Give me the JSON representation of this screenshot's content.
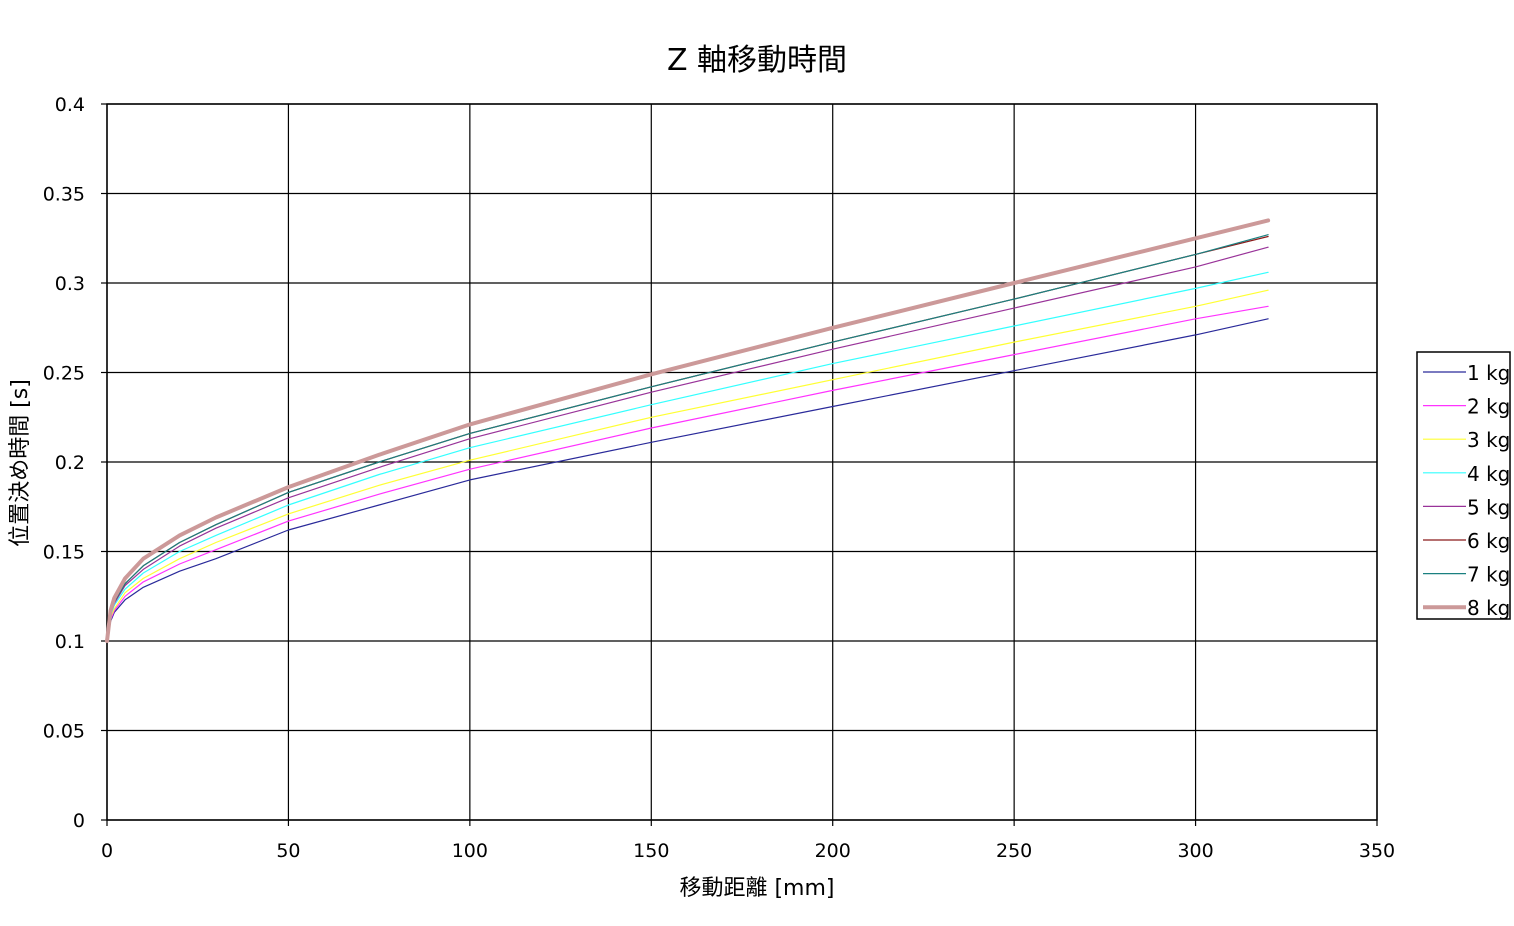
{
  "chart_data": {
    "type": "line",
    "title": "Z 軸移動時間",
    "xlabel": "移動距離 [mm]",
    "ylabel": "位置決め時間 [s]",
    "xlim": [
      0,
      350
    ],
    "ylim": [
      0,
      0.4
    ],
    "xticks": [
      0,
      50,
      100,
      150,
      200,
      250,
      300,
      350
    ],
    "xtick_labels": [
      "0",
      "50",
      "100",
      "150",
      "200",
      "250",
      "300",
      "350"
    ],
    "yticks": [
      0,
      0.05,
      0.1,
      0.15,
      0.2,
      0.25,
      0.3,
      0.35,
      0.4
    ],
    "ytick_labels": [
      "0",
      "0.05",
      "0.1",
      "0.15",
      "0.2",
      "0.25",
      "0.3",
      "0.35",
      "0.4"
    ],
    "grid": true,
    "legend_position": "right",
    "x": [
      0,
      1,
      2,
      5,
      10,
      20,
      30,
      50,
      75,
      100,
      150,
      200,
      250,
      300,
      320
    ],
    "series": [
      {
        "name": "1 kg",
        "color": "#2a2a9a",
        "width": 1.2,
        "values": [
          0.1,
          0.111,
          0.116,
          0.123,
          0.13,
          0.139,
          0.146,
          0.162,
          0.176,
          0.19,
          0.211,
          0.231,
          0.251,
          0.271,
          0.28
        ]
      },
      {
        "name": "2 kg",
        "color": "#ff33ff",
        "width": 1.2,
        "values": [
          0.1,
          0.112,
          0.117,
          0.125,
          0.133,
          0.143,
          0.151,
          0.167,
          0.182,
          0.196,
          0.219,
          0.24,
          0.26,
          0.28,
          0.287
        ]
      },
      {
        "name": "3 kg",
        "color": "#ffff33",
        "width": 1.2,
        "values": [
          0.1,
          0.113,
          0.118,
          0.127,
          0.135,
          0.146,
          0.155,
          0.171,
          0.187,
          0.201,
          0.225,
          0.246,
          0.267,
          0.287,
          0.296
        ]
      },
      {
        "name": "4 kg",
        "color": "#33ffff",
        "width": 1.2,
        "values": [
          0.1,
          0.114,
          0.12,
          0.129,
          0.138,
          0.15,
          0.159,
          0.176,
          0.193,
          0.208,
          0.232,
          0.255,
          0.276,
          0.297,
          0.306
        ]
      },
      {
        "name": "5 kg",
        "color": "#993399",
        "width": 1.2,
        "values": [
          0.1,
          0.115,
          0.121,
          0.131,
          0.14,
          0.153,
          0.163,
          0.18,
          0.197,
          0.213,
          0.239,
          0.263,
          0.286,
          0.309,
          0.32
        ]
      },
      {
        "name": "6 kg",
        "color": "#8b1a1a",
        "width": 1.2,
        "values": [
          0.1,
          0.116,
          0.122,
          0.132,
          0.142,
          0.155,
          0.165,
          0.183,
          0.2,
          0.216,
          0.242,
          0.267,
          0.291,
          0.316,
          0.326
        ]
      },
      {
        "name": "7 kg",
        "color": "#1a8080",
        "width": 1.2,
        "values": [
          0.1,
          0.116,
          0.122,
          0.132,
          0.142,
          0.155,
          0.165,
          0.183,
          0.2,
          0.216,
          0.242,
          0.267,
          0.291,
          0.316,
          0.327
        ]
      },
      {
        "name": "8 kg",
        "color": "#cc9999",
        "width": 4,
        "values": [
          0.1,
          0.117,
          0.124,
          0.135,
          0.146,
          0.159,
          0.169,
          0.186,
          0.204,
          0.221,
          0.249,
          0.275,
          0.3,
          0.325,
          0.335
        ]
      }
    ]
  }
}
